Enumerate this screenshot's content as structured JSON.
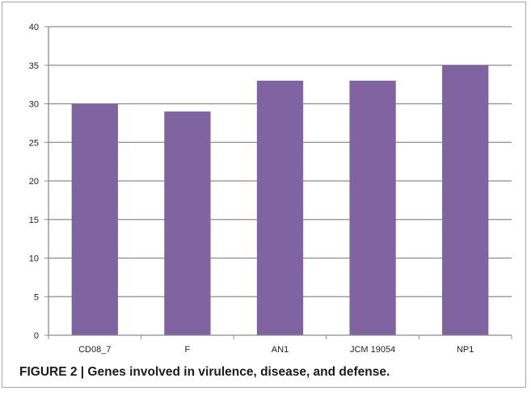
{
  "chart_data": {
    "type": "bar",
    "categories": [
      "CD08_7",
      "F",
      "AN1",
      "JCM 19054",
      "NP1"
    ],
    "values": [
      30,
      29,
      33,
      33,
      35
    ],
    "ylim": [
      0,
      40
    ],
    "yticks": [
      0,
      5,
      10,
      15,
      20,
      25,
      30,
      35,
      40
    ],
    "grid": true,
    "legend": "none",
    "bar_color": "#8064a2",
    "gridline_color": "#8c8c8c"
  },
  "caption": "FIGURE 2 | Genes involved in virulence, disease, and defense."
}
